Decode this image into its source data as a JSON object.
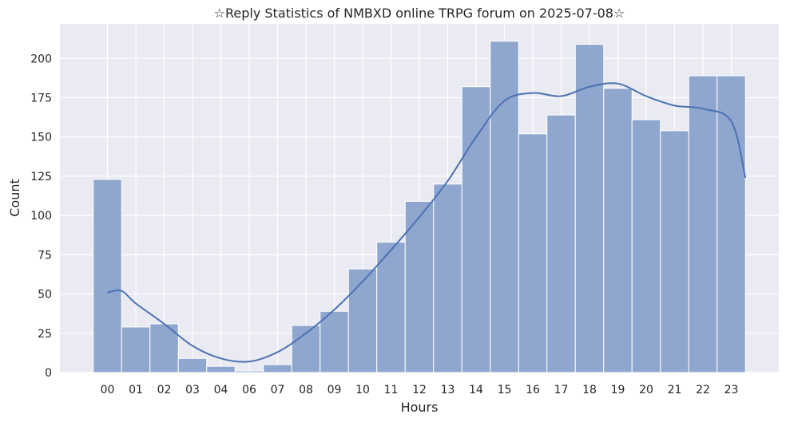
{
  "chart_data": {
    "type": "bar",
    "title": "☆Reply Statistics of NMBXD online TRPG forum on 2025-07-08☆",
    "xlabel": "Hours",
    "ylabel": "Count",
    "categories": [
      "00",
      "01",
      "02",
      "03",
      "04",
      "06",
      "07",
      "08",
      "09",
      "10",
      "11",
      "12",
      "13",
      "14",
      "15",
      "16",
      "17",
      "18",
      "19",
      "20",
      "21",
      "22",
      "23"
    ],
    "values": [
      123,
      29,
      31,
      9,
      4,
      1,
      5,
      30,
      39,
      66,
      83,
      109,
      120,
      182,
      211,
      152,
      164,
      209,
      181,
      161,
      154,
      189,
      189
    ],
    "kde": {
      "x": [
        0,
        0.5,
        1,
        2,
        3,
        4,
        5,
        6,
        7,
        8,
        9,
        10,
        11,
        12,
        13,
        14,
        15,
        16,
        17,
        18,
        19,
        20,
        21,
        22,
        22.5
      ],
      "y": [
        51,
        52,
        44,
        31,
        17,
        9,
        7,
        13,
        25,
        40,
        58,
        78,
        99,
        122,
        150,
        173,
        178,
        176,
        182,
        184,
        176,
        170,
        168,
        160,
        124
      ]
    },
    "ylim": [
      0,
      222
    ],
    "yticks": [
      0,
      25,
      50,
      75,
      100,
      125,
      150,
      175,
      200
    ],
    "grid": true,
    "colors": {
      "bar_fill": "#8fa6cf",
      "bar_edge": "#ffffff",
      "kde_line": "#4c72b0",
      "plot_background": "#eaeaf2",
      "grid": "#ffffff"
    }
  }
}
